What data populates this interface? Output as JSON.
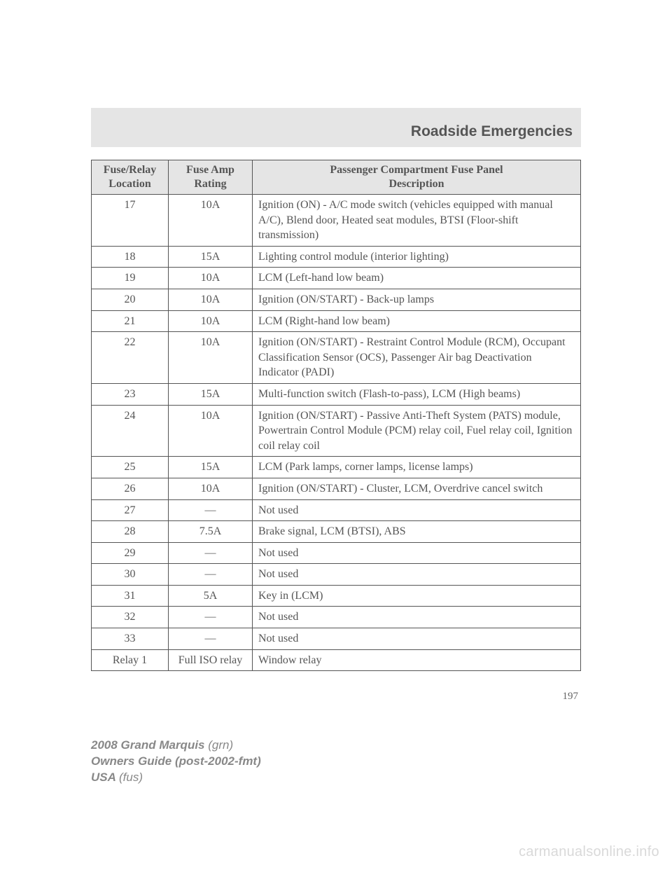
{
  "header": {
    "title": "Roadside Emergencies"
  },
  "table": {
    "columns": {
      "c1a": "Fuse/Relay",
      "c1b": "Location",
      "c2a": "Fuse Amp",
      "c2b": "Rating",
      "c3a": "Passenger Compartment Fuse Panel",
      "c3b": "Description"
    },
    "rows": [
      {
        "loc": "17",
        "amp": "10A",
        "desc": "Ignition (ON) - A/C mode switch (vehicles equipped with manual A/C), Blend door, Heated seat modules, BTSI (Floor-shift transmission)"
      },
      {
        "loc": "18",
        "amp": "15A",
        "desc": "Lighting control module (interior lighting)"
      },
      {
        "loc": "19",
        "amp": "10A",
        "desc": "LCM (Left-hand low beam)"
      },
      {
        "loc": "20",
        "amp": "10A",
        "desc": "Ignition (ON/START) - Back-up lamps"
      },
      {
        "loc": "21",
        "amp": "10A",
        "desc": "LCM (Right-hand low beam)"
      },
      {
        "loc": "22",
        "amp": "10A",
        "desc": "Ignition (ON/START) - Restraint Control Module (RCM), Occupant Classification Sensor (OCS), Passenger Air bag Deactivation Indicator (PADI)"
      },
      {
        "loc": "23",
        "amp": "15A",
        "desc": "Multi-function switch (Flash-to-pass), LCM (High beams)"
      },
      {
        "loc": "24",
        "amp": "10A",
        "desc": "Ignition (ON/START) - Passive Anti-Theft System (PATS) module, Powertrain Control Module (PCM) relay coil, Fuel relay coil, Ignition coil relay coil"
      },
      {
        "loc": "25",
        "amp": "15A",
        "desc": "LCM (Park lamps, corner lamps, license lamps)"
      },
      {
        "loc": "26",
        "amp": "10A",
        "desc": "Ignition (ON/START) - Cluster, LCM, Overdrive cancel switch"
      },
      {
        "loc": "27",
        "amp": "—",
        "desc": "Not used"
      },
      {
        "loc": "28",
        "amp": "7.5A",
        "desc": "Brake signal, LCM (BTSI), ABS"
      },
      {
        "loc": "29",
        "amp": "—",
        "desc": "Not used"
      },
      {
        "loc": "30",
        "amp": "—",
        "desc": "Not used"
      },
      {
        "loc": "31",
        "amp": "5A",
        "desc": "Key in (LCM)"
      },
      {
        "loc": "32",
        "amp": "—",
        "desc": "Not used"
      },
      {
        "loc": "33",
        "amp": "—",
        "desc": "Not used"
      },
      {
        "loc": "Relay 1",
        "amp": "Full ISO relay",
        "desc": "Window relay"
      }
    ]
  },
  "page_number": "197",
  "footer": {
    "line1_bold": "2008 Grand Marquis ",
    "line1_italic": "(grn)",
    "line2": "Owners Guide (post-2002-fmt)",
    "line3_bold": "USA ",
    "line3_italic": "(fus)"
  },
  "watermark": "carmanualsonline.info"
}
